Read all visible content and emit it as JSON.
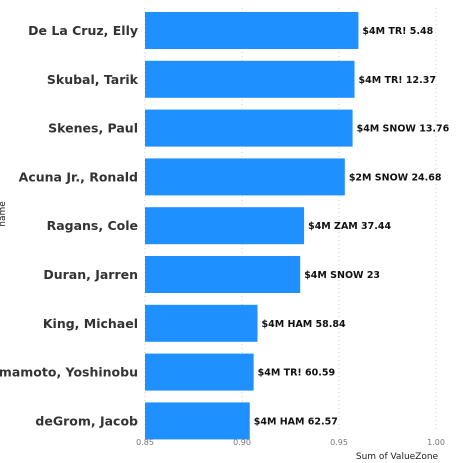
{
  "chart_data": {
    "type": "bar",
    "orientation": "horizontal",
    "categories": [
      "De La Cruz, Elly",
      "Skubal, Tarik",
      "Skenes, Paul",
      "Acuna Jr., Ronald",
      "Ragans, Cole",
      "Duran, Jarren",
      "King, Michael",
      "Yamamoto, Yoshinobu",
      "deGrom, Jacob"
    ],
    "values": [
      0.96,
      0.958,
      0.957,
      0.953,
      0.932,
      0.93,
      0.908,
      0.906,
      0.904
    ],
    "data_labels": [
      "$4M TR! 5.48",
      "$4M TR! 12.37",
      "$4M SNOW 13.76",
      "$2M SNOW 24.68",
      "$4M ZAM 37.44",
      "$4M SNOW 23",
      "$4M HAM 58.84",
      "$4M TR! 60.59",
      "$4M HAM 62.57"
    ],
    "xlabel": "Sum of ValueZone",
    "ylabel": "name",
    "xlim": [
      0.85,
      1.0
    ],
    "xticks": [
      "0.85",
      "0.90",
      "0.95",
      "1.00"
    ],
    "grid": true,
    "bar_color": "#1e90ff"
  }
}
